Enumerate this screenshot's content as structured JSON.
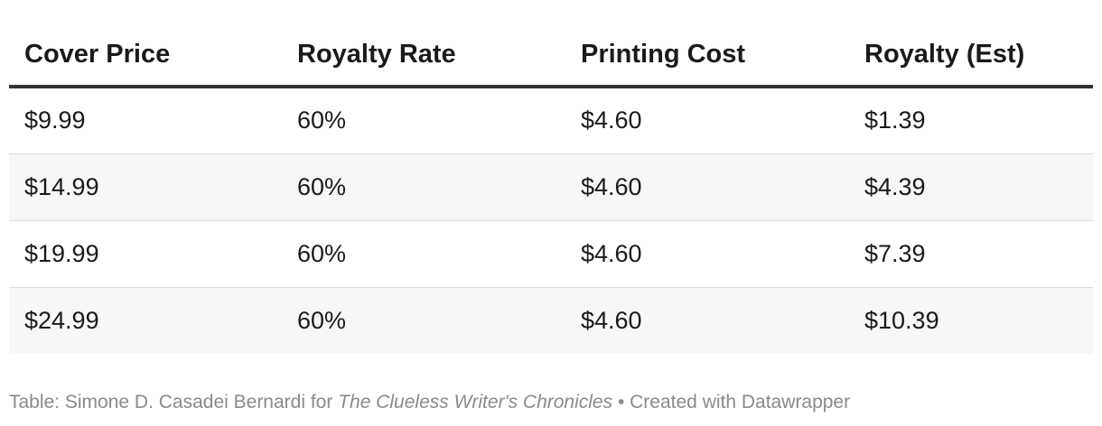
{
  "chart_data": {
    "type": "table",
    "columns": [
      "Cover Price",
      "Royalty Rate",
      "Printing Cost",
      "Royalty (Est)"
    ],
    "rows": [
      [
        "$9.99",
        "60%",
        "$4.60",
        "$1.39"
      ],
      [
        "$14.99",
        "60%",
        "$4.60",
        "$4.39"
      ],
      [
        "$19.99",
        "60%",
        "$4.60",
        "$7.39"
      ],
      [
        "$24.99",
        "60%",
        "$4.60",
        "$10.39"
      ]
    ],
    "striped_rows": true,
    "stripe_color": "#f7f7f7",
    "header_rule_color": "#333333"
  },
  "footer": {
    "prefix": "Table: Simone D. Casadei Bernardi for ",
    "publication": "The Clueless Writer's Chronicles",
    "suffix": " • Created with Datawrapper"
  }
}
